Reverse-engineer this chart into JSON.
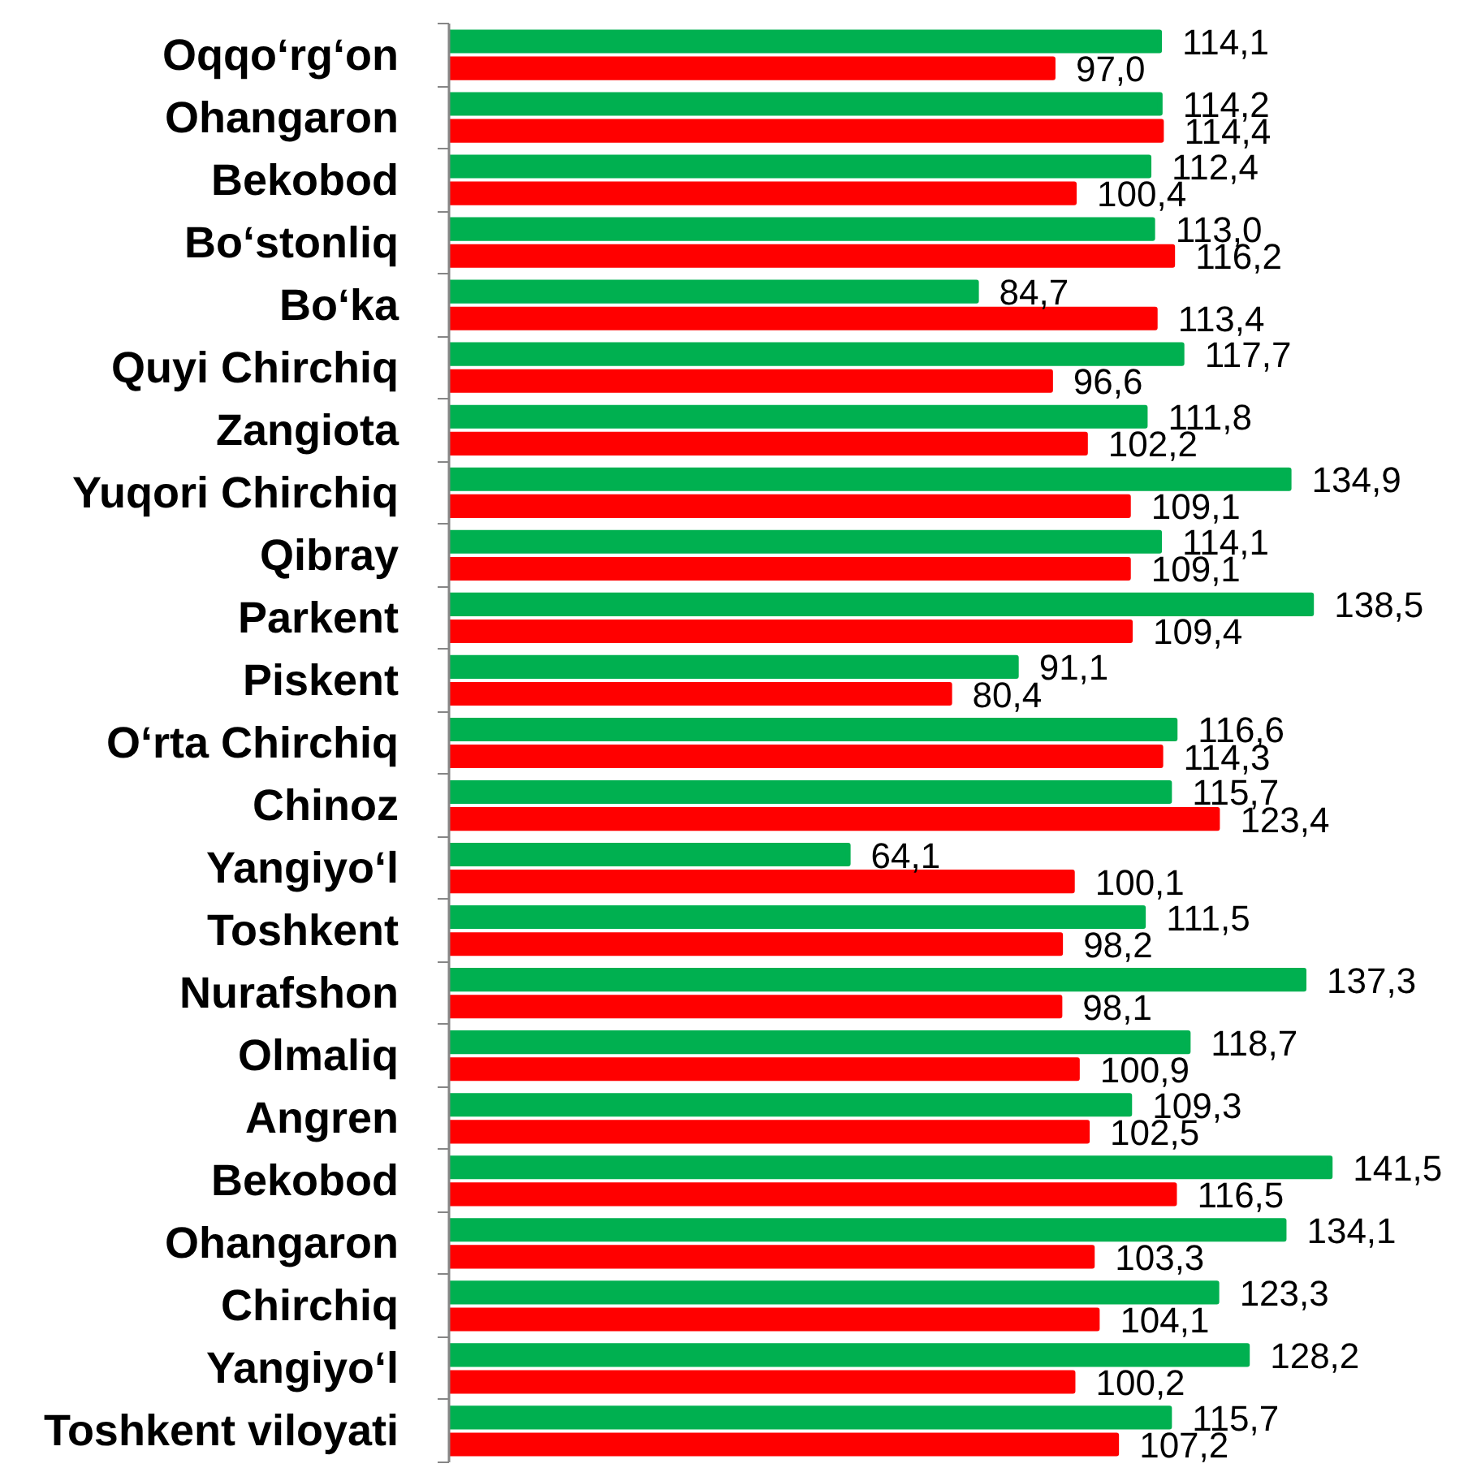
{
  "chart_data": {
    "type": "bar",
    "orientation": "horizontal",
    "categories": [
      "Oqqo‘rg‘on",
      "Ohangaron",
      "Bekobod",
      "Bo‘stonliq",
      "Bo‘ka",
      "Quyi Chirchiq",
      "Zangiota",
      "Yuqori Chirchiq",
      "Qibray",
      "Parkent",
      "Piskent",
      "O‘rta Chirchiq",
      "Chinoz",
      "Yangiyo‘l",
      "Toshkent",
      "Nurafshon",
      "Olmaliq",
      "Angren",
      "Bekobod",
      "Ohangaron",
      "Chirchiq",
      "Yangiyo‘l",
      "Toshkent viloyati"
    ],
    "series": [
      {
        "color": "#00b050",
        "values": [
          114.1,
          114.2,
          112.4,
          113.0,
          84.7,
          117.7,
          111.8,
          134.9,
          114.1,
          138.5,
          91.1,
          116.6,
          115.7,
          64.1,
          111.5,
          137.3,
          118.7,
          109.3,
          141.5,
          134.1,
          123.3,
          128.2,
          115.7
        ],
        "value_labels": [
          "114,1",
          "114,2",
          "112,4",
          "113,0",
          "84,7",
          "117,7",
          "111,8",
          "134,9",
          "114,1",
          "138,5",
          "91,1",
          "116,6",
          "115,7",
          "64,1",
          "111,5",
          "137,3",
          "118,7",
          "109,3",
          "141,5",
          "134,1",
          "123,3",
          "128,2",
          "115,7"
        ]
      },
      {
        "color": "#ff0000",
        "values": [
          97.0,
          114.4,
          100.4,
          116.2,
          113.4,
          96.6,
          102.2,
          109.1,
          109.1,
          109.4,
          80.4,
          114.3,
          123.4,
          100.1,
          98.2,
          98.1,
          100.9,
          102.5,
          116.5,
          103.3,
          104.1,
          100.2,
          107.2
        ],
        "value_labels": [
          "97,0",
          "114,4",
          "100,4",
          "116,2",
          "113,4",
          "96,6",
          "102,2",
          "109,1",
          "109,1",
          "109,4",
          "80,4",
          "114,3",
          "123,4",
          "100,1",
          "98,2",
          "98,1",
          "100,9",
          "102,5",
          "116,5",
          "103,3",
          "104,1",
          "100,2",
          "107,2"
        ]
      }
    ],
    "tick_labels": "y"
  }
}
